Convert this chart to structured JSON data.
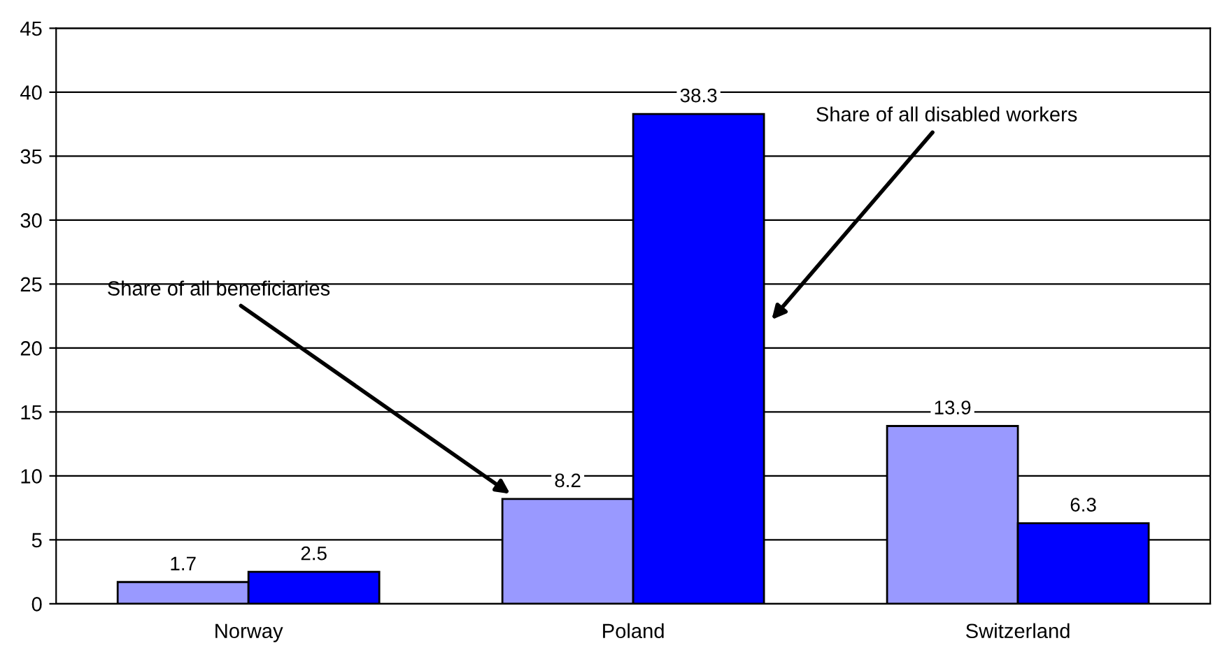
{
  "chart_data": {
    "type": "bar",
    "categories": [
      "Norway",
      "Poland",
      "Switzerland"
    ],
    "series": [
      {
        "name": "Share of all beneficiaries",
        "color": "#9999ff",
        "values": [
          1.7,
          8.2,
          13.9
        ]
      },
      {
        "name": "Share of all disabled workers",
        "color": "#0000ff",
        "values": [
          2.5,
          38.3,
          6.3
        ]
      }
    ],
    "ylim": [
      0,
      45
    ],
    "yticks": [
      0,
      5,
      10,
      15,
      20,
      25,
      30,
      35,
      40,
      45
    ],
    "grid": "y",
    "data_labels": true,
    "legend": false
  }
}
